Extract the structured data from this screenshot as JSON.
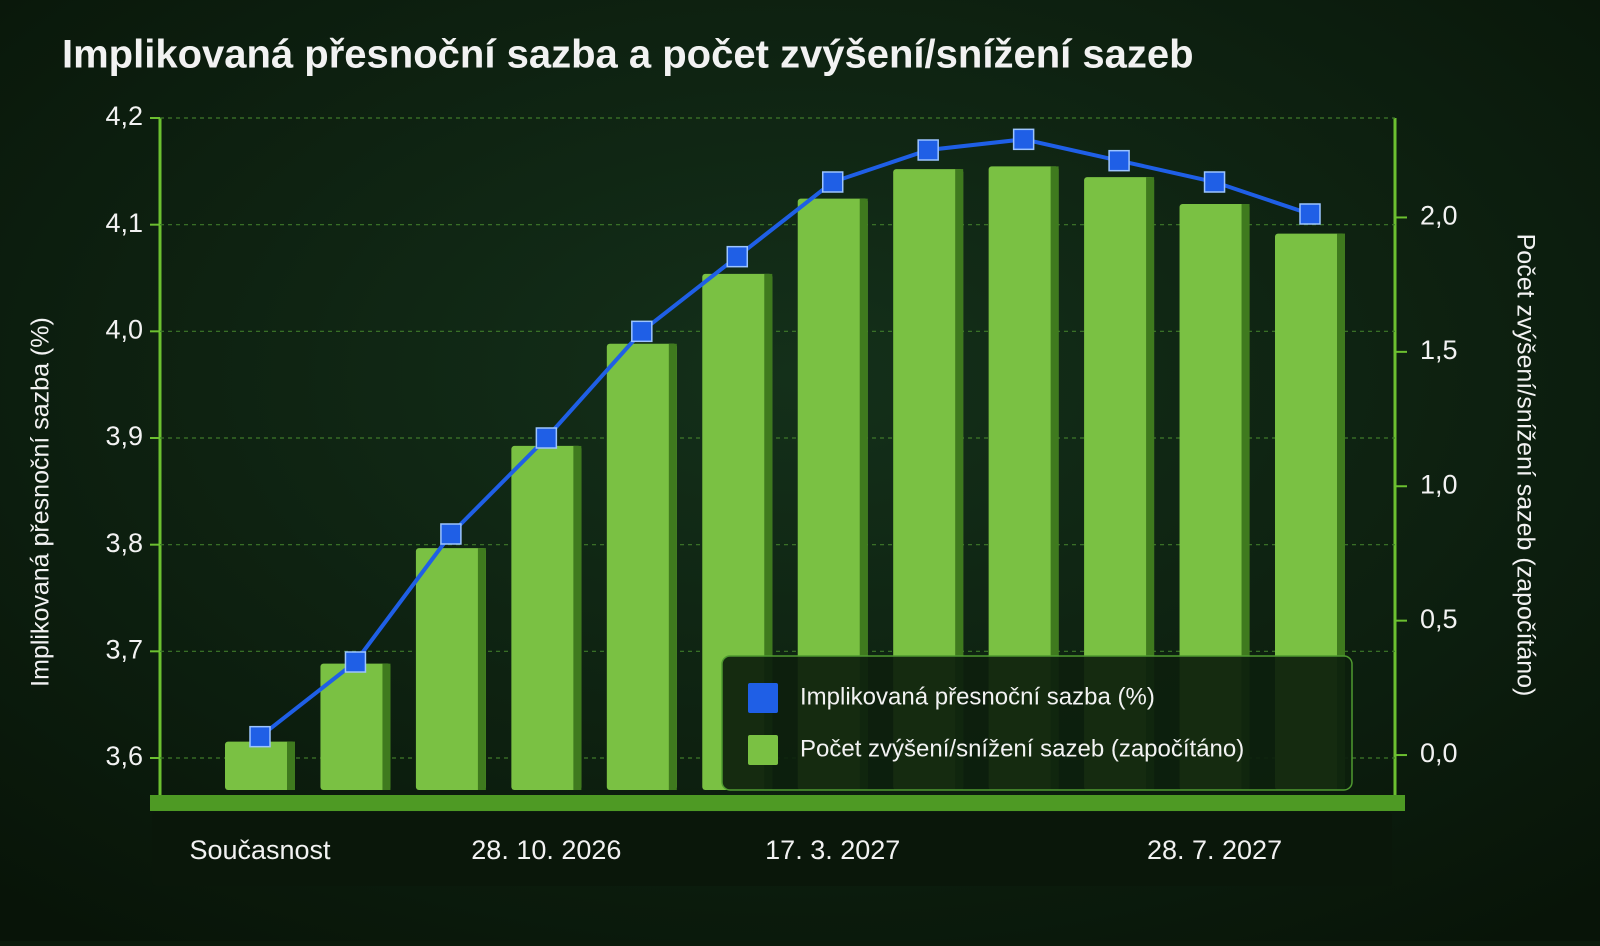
{
  "chart_data": {
    "type": "bar_line",
    "title": "Implikovaná přesnoční sazba a počet zvýšení/snížení sazeb",
    "y_label": "Implikovaná přesnoční sazba (%)",
    "y2_label": "Počet zvýšení/snížení sazeb (započítáno)",
    "categories": [
      "Současnost",
      null,
      null,
      "28. 10. 2026",
      null,
      null,
      "17. 3. 2027",
      null,
      null,
      null,
      "28. 7. 2027",
      null
    ],
    "series": [
      {
        "name": "Implikovaná přesnoční sazba (%)",
        "type": "line",
        "color": "#1f5fe6",
        "axis": "y",
        "values": [
          3.62,
          3.69,
          3.81,
          3.9,
          4.0,
          4.07,
          4.14,
          4.17,
          4.18,
          4.16,
          4.14,
          4.11
        ]
      },
      {
        "name": "Počet zvýšení/snížení sazeb (započítáno)",
        "type": "bar",
        "color": "#7ac143",
        "axis": "y2",
        "values": [
          0.05,
          0.34,
          0.77,
          1.15,
          1.53,
          1.79,
          2.07,
          2.18,
          2.19,
          2.15,
          2.05,
          1.94
        ]
      }
    ],
    "ylim": [
      3.57,
      4.2
    ],
    "yticks": [
      {
        "value": 3.6,
        "label": "3,6"
      },
      {
        "value": 3.7,
        "label": "3,7"
      },
      {
        "value": 3.8,
        "label": "3,8"
      },
      {
        "value": 3.9,
        "label": "3,9"
      },
      {
        "value": 4.0,
        "label": "4,0"
      },
      {
        "value": 4.1,
        "label": "4,1"
      },
      {
        "value": 4.2,
        "label": "4,2"
      }
    ],
    "y2lim": [
      -0.13,
      2.37
    ],
    "y2ticks": [
      {
        "value": 0,
        "label": "0,0"
      },
      {
        "value": 0.5,
        "label": "0,5"
      },
      {
        "value": 1.0,
        "label": "1,0"
      },
      {
        "value": 1.5,
        "label": "1,5"
      },
      {
        "value": 2.0,
        "label": "2,0"
      }
    ],
    "grid": true,
    "legend": "lower right"
  }
}
